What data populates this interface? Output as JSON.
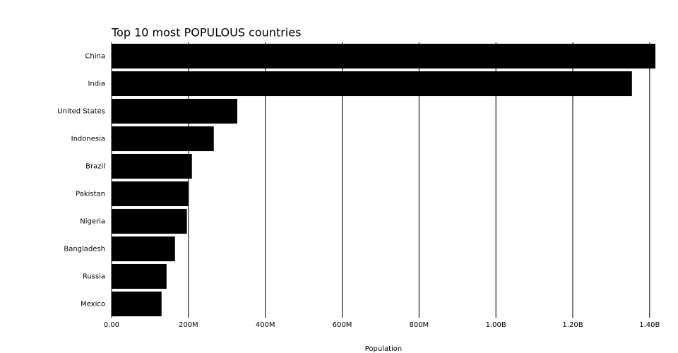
{
  "chart_data": {
    "type": "bar",
    "orientation": "horizontal",
    "title": "Top 10 most POPULOUS countries",
    "x_label": "Population",
    "categories": [
      "China",
      "India",
      "United States",
      "Indonesia",
      "Brazil",
      "Pakistan",
      "Nigeria",
      "Bangladesh",
      "Russia",
      "Mexico"
    ],
    "values": [
      1415000000,
      1354000000,
      327000000,
      266000000,
      209000000,
      200000000,
      196000000,
      165000000,
      143000000,
      130000000
    ],
    "color": "#000000",
    "xlim": [
      0,
      1415000000
    ],
    "xticks": [
      {
        "value": 0,
        "label": "0.00"
      },
      {
        "value": 200000000,
        "label": "200M"
      },
      {
        "value": 400000000,
        "label": "400M"
      },
      {
        "value": 600000000,
        "label": "600M"
      },
      {
        "value": 800000000,
        "label": "800M"
      },
      {
        "value": 1000000000,
        "label": "1.00B"
      },
      {
        "value": 1200000000,
        "label": "1.20B"
      },
      {
        "value": 1400000000,
        "label": "1.40B"
      }
    ],
    "grid": true
  }
}
